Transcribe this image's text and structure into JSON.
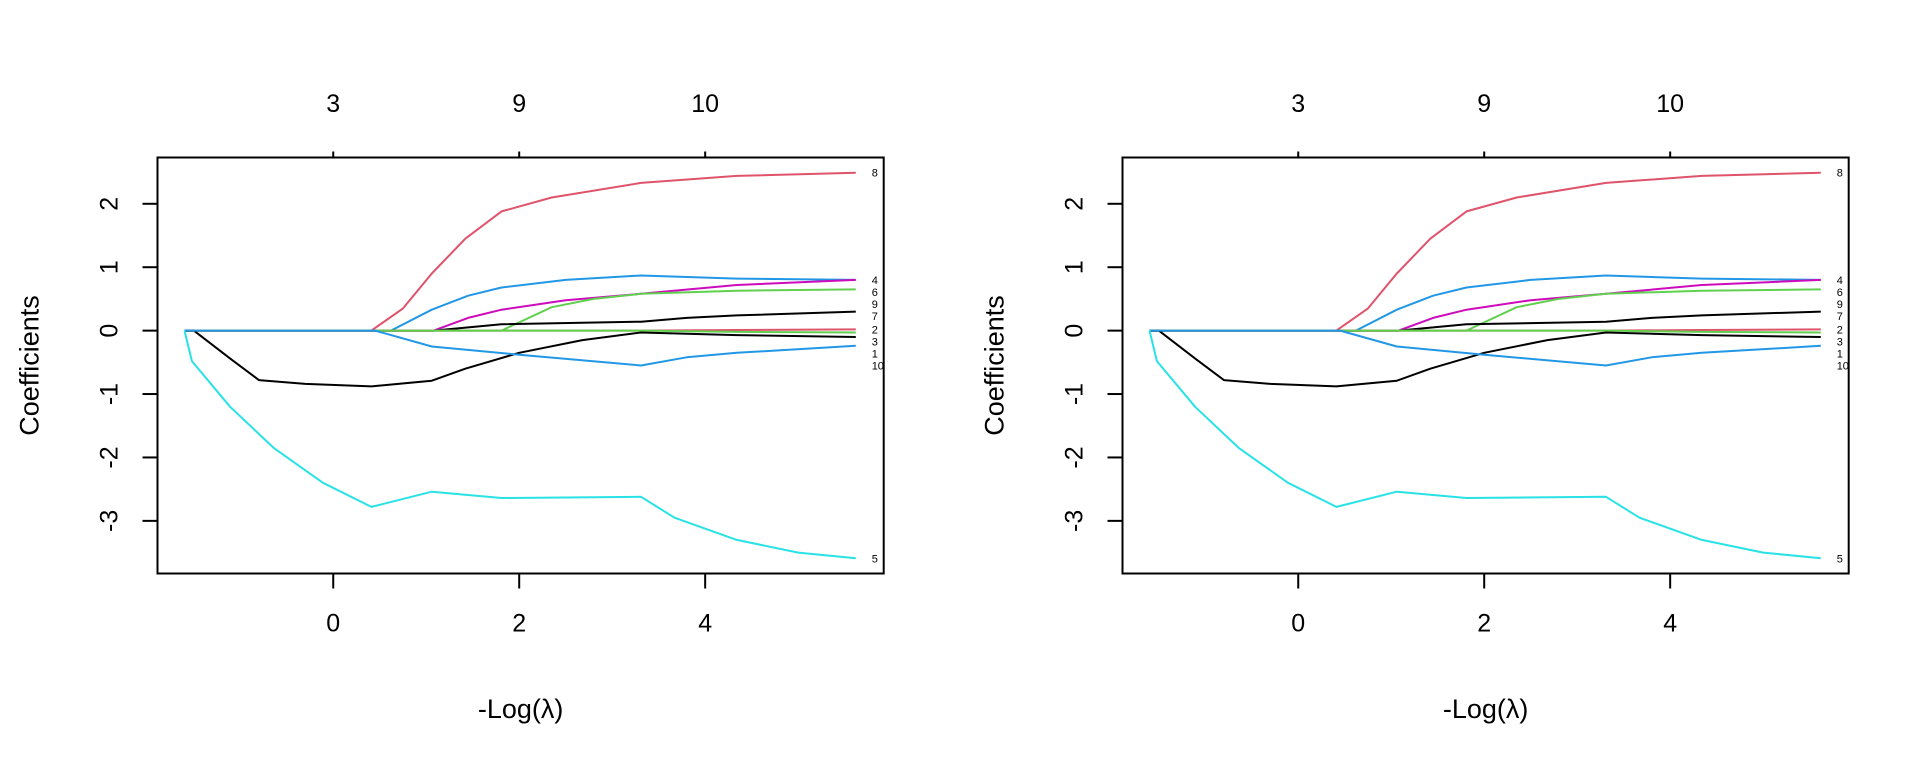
{
  "chart_data": [
    {
      "type": "line",
      "title": "",
      "xlabel": "-Log(λ)",
      "ylabel": "Coefficients",
      "xlim": [
        -1.89,
        5.92
      ],
      "ylim": [
        -3.83,
        2.73
      ],
      "grid": false,
      "x_ticks": [
        0,
        2,
        4
      ],
      "x_tick_labels": [
        "0",
        "2",
        "4"
      ],
      "y_ticks": [
        -3,
        -2,
        -1,
        0,
        1,
        2
      ],
      "y_tick_labels": [
        "-3",
        "-2",
        "-1",
        "0",
        "1",
        "2"
      ],
      "top_axis_ticks": [
        0,
        2,
        4
      ],
      "top_axis_labels": [
        "3",
        "9",
        "10"
      ],
      "series": [
        {
          "name": "8",
          "color": "#DF536B",
          "points": [
            [
              -1.6,
              0
            ],
            [
              0.41,
              0
            ],
            [
              0.75,
              0.35
            ],
            [
              1.06,
              0.9
            ],
            [
              1.42,
              1.45
            ],
            [
              1.81,
              1.88
            ],
            [
              2.35,
              2.1
            ],
            [
              3.31,
              2.33
            ],
            [
              4.34,
              2.44
            ],
            [
              5.62,
              2.49
            ]
          ]
        },
        {
          "name": "4",
          "color": "#2297E6",
          "points": [
            [
              -1.6,
              0
            ],
            [
              0.62,
              0
            ],
            [
              1.06,
              0.33
            ],
            [
              1.45,
              0.55
            ],
            [
              1.81,
              0.68
            ],
            [
              2.5,
              0.8
            ],
            [
              3.31,
              0.87
            ],
            [
              4.34,
              0.82
            ],
            [
              5.62,
              0.8
            ]
          ]
        },
        {
          "name": "6",
          "color": "#CD0BBC",
          "points": [
            [
              -1.6,
              0
            ],
            [
              1.08,
              0
            ],
            [
              1.45,
              0.2
            ],
            [
              1.81,
              0.33
            ],
            [
              2.5,
              0.48
            ],
            [
              3.31,
              0.58
            ],
            [
              4.34,
              0.72
            ],
            [
              5.62,
              0.8
            ]
          ]
        },
        {
          "name": "9",
          "color": "#61D04F",
          "points": [
            [
              -1.6,
              0
            ],
            [
              1.81,
              0
            ],
            [
              2.35,
              0.37
            ],
            [
              2.8,
              0.5
            ],
            [
              3.31,
              0.58
            ],
            [
              4.34,
              0.63
            ],
            [
              5.62,
              0.65
            ]
          ]
        },
        {
          "name": "7",
          "color": "#000000",
          "points": [
            [
              -1.6,
              0
            ],
            [
              1.08,
              0
            ],
            [
              1.81,
              0.1
            ],
            [
              3.31,
              0.14
            ],
            [
              3.8,
              0.2
            ],
            [
              4.34,
              0.24
            ],
            [
              5.62,
              0.3
            ]
          ]
        },
        {
          "name": "2",
          "color": "#DF536B",
          "points": [
            [
              -1.6,
              0
            ],
            [
              3.31,
              0
            ],
            [
              4.34,
              0.01
            ],
            [
              5.62,
              0.02
            ]
          ]
        },
        {
          "name": "3",
          "color": "#61D04F",
          "points": [
            [
              -1.6,
              0
            ],
            [
              3.31,
              0
            ],
            [
              4.34,
              -0.02
            ],
            [
              5.62,
              -0.03
            ]
          ]
        },
        {
          "name": "1",
          "color": "#000000",
          "points": [
            [
              -1.6,
              0
            ],
            [
              -1.5,
              0
            ],
            [
              -1.1,
              -0.45
            ],
            [
              -0.8,
              -0.78
            ],
            [
              -0.3,
              -0.84
            ],
            [
              0.41,
              -0.88
            ],
            [
              1.06,
              -0.79
            ],
            [
              1.42,
              -0.6
            ],
            [
              2.0,
              -0.35
            ],
            [
              2.68,
              -0.15
            ],
            [
              3.31,
              -0.03
            ],
            [
              4.34,
              -0.07
            ],
            [
              5.62,
              -0.1
            ]
          ]
        },
        {
          "name": "10",
          "color": "#2297E6",
          "points": [
            [
              -1.6,
              0
            ],
            [
              0.45,
              0
            ],
            [
              1.06,
              -0.25
            ],
            [
              2.0,
              -0.38
            ],
            [
              3.31,
              -0.55
            ],
            [
              3.8,
              -0.42
            ],
            [
              4.34,
              -0.35
            ],
            [
              5.62,
              -0.24
            ]
          ]
        },
        {
          "name": "5",
          "color": "#28E2E5",
          "points": [
            [
              -1.6,
              0
            ],
            [
              -1.52,
              -0.48
            ],
            [
              -1.11,
              -1.2
            ],
            [
              -0.64,
              -1.85
            ],
            [
              -0.11,
              -2.4
            ],
            [
              0.41,
              -2.78
            ],
            [
              1.06,
              -2.54
            ],
            [
              1.81,
              -2.64
            ],
            [
              3.31,
              -2.62
            ],
            [
              3.67,
              -2.95
            ],
            [
              4.34,
              -3.3
            ],
            [
              5.0,
              -3.5
            ],
            [
              5.62,
              -3.59
            ]
          ]
        }
      ]
    },
    {
      "type": "line",
      "title": "",
      "xlabel": "-Log(λ)",
      "ylabel": "Coefficients",
      "xlim": [
        -1.89,
        5.92
      ],
      "ylim": [
        -3.83,
        2.73
      ],
      "grid": false,
      "x_ticks": [
        0,
        2,
        4
      ],
      "x_tick_labels": [
        "0",
        "2",
        "4"
      ],
      "y_ticks": [
        -3,
        -2,
        -1,
        0,
        1,
        2
      ],
      "y_tick_labels": [
        "-3",
        "-2",
        "-1",
        "0",
        "1",
        "2"
      ],
      "top_axis_ticks": [
        0,
        2,
        4
      ],
      "top_axis_labels": [
        "3",
        "9",
        "10"
      ],
      "series": [
        {
          "name": "8",
          "color": "#DF536B",
          "points": [
            [
              -1.6,
              0
            ],
            [
              0.41,
              0
            ],
            [
              0.75,
              0.35
            ],
            [
              1.06,
              0.9
            ],
            [
              1.42,
              1.45
            ],
            [
              1.81,
              1.88
            ],
            [
              2.35,
              2.1
            ],
            [
              3.31,
              2.33
            ],
            [
              4.34,
              2.44
            ],
            [
              5.62,
              2.49
            ]
          ]
        },
        {
          "name": "4",
          "color": "#2297E6",
          "points": [
            [
              -1.6,
              0
            ],
            [
              0.62,
              0
            ],
            [
              1.06,
              0.33
            ],
            [
              1.45,
              0.55
            ],
            [
              1.81,
              0.68
            ],
            [
              2.5,
              0.8
            ],
            [
              3.31,
              0.87
            ],
            [
              4.34,
              0.82
            ],
            [
              5.62,
              0.8
            ]
          ]
        },
        {
          "name": "6",
          "color": "#CD0BBC",
          "points": [
            [
              -1.6,
              0
            ],
            [
              1.08,
              0
            ],
            [
              1.45,
              0.2
            ],
            [
              1.81,
              0.33
            ],
            [
              2.5,
              0.48
            ],
            [
              3.31,
              0.58
            ],
            [
              4.34,
              0.72
            ],
            [
              5.62,
              0.8
            ]
          ]
        },
        {
          "name": "9",
          "color": "#61D04F",
          "points": [
            [
              -1.6,
              0
            ],
            [
              1.81,
              0
            ],
            [
              2.35,
              0.37
            ],
            [
              2.8,
              0.5
            ],
            [
              3.31,
              0.58
            ],
            [
              4.34,
              0.63
            ],
            [
              5.62,
              0.65
            ]
          ]
        },
        {
          "name": "7",
          "color": "#000000",
          "points": [
            [
              -1.6,
              0
            ],
            [
              1.08,
              0
            ],
            [
              1.81,
              0.1
            ],
            [
              3.31,
              0.14
            ],
            [
              3.8,
              0.2
            ],
            [
              4.34,
              0.24
            ],
            [
              5.62,
              0.3
            ]
          ]
        },
        {
          "name": "2",
          "color": "#DF536B",
          "points": [
            [
              -1.6,
              0
            ],
            [
              3.31,
              0
            ],
            [
              4.34,
              0.01
            ],
            [
              5.62,
              0.02
            ]
          ]
        },
        {
          "name": "3",
          "color": "#61D04F",
          "points": [
            [
              -1.6,
              0
            ],
            [
              3.31,
              0
            ],
            [
              4.34,
              -0.02
            ],
            [
              5.62,
              -0.03
            ]
          ]
        },
        {
          "name": "1",
          "color": "#000000",
          "points": [
            [
              -1.6,
              0
            ],
            [
              -1.5,
              0
            ],
            [
              -1.1,
              -0.45
            ],
            [
              -0.8,
              -0.78
            ],
            [
              -0.3,
              -0.84
            ],
            [
              0.41,
              -0.88
            ],
            [
              1.06,
              -0.79
            ],
            [
              1.42,
              -0.6
            ],
            [
              2.0,
              -0.35
            ],
            [
              2.68,
              -0.15
            ],
            [
              3.31,
              -0.03
            ],
            [
              4.34,
              -0.07
            ],
            [
              5.62,
              -0.1
            ]
          ]
        },
        {
          "name": "10",
          "color": "#2297E6",
          "points": [
            [
              -1.6,
              0
            ],
            [
              0.45,
              0
            ],
            [
              1.06,
              -0.25
            ],
            [
              2.0,
              -0.38
            ],
            [
              3.31,
              -0.55
            ],
            [
              3.8,
              -0.42
            ],
            [
              4.34,
              -0.35
            ],
            [
              5.62,
              -0.24
            ]
          ]
        },
        {
          "name": "5",
          "color": "#28E2E5",
          "points": [
            [
              -1.6,
              0
            ],
            [
              -1.52,
              -0.48
            ],
            [
              -1.11,
              -1.2
            ],
            [
              -0.64,
              -1.85
            ],
            [
              -0.11,
              -2.4
            ],
            [
              0.41,
              -2.78
            ],
            [
              1.06,
              -2.54
            ],
            [
              1.81,
              -2.64
            ],
            [
              3.31,
              -2.62
            ],
            [
              3.67,
              -2.95
            ],
            [
              4.34,
              -3.3
            ],
            [
              5.0,
              -3.5
            ],
            [
              5.62,
              -3.59
            ]
          ]
        }
      ]
    }
  ]
}
